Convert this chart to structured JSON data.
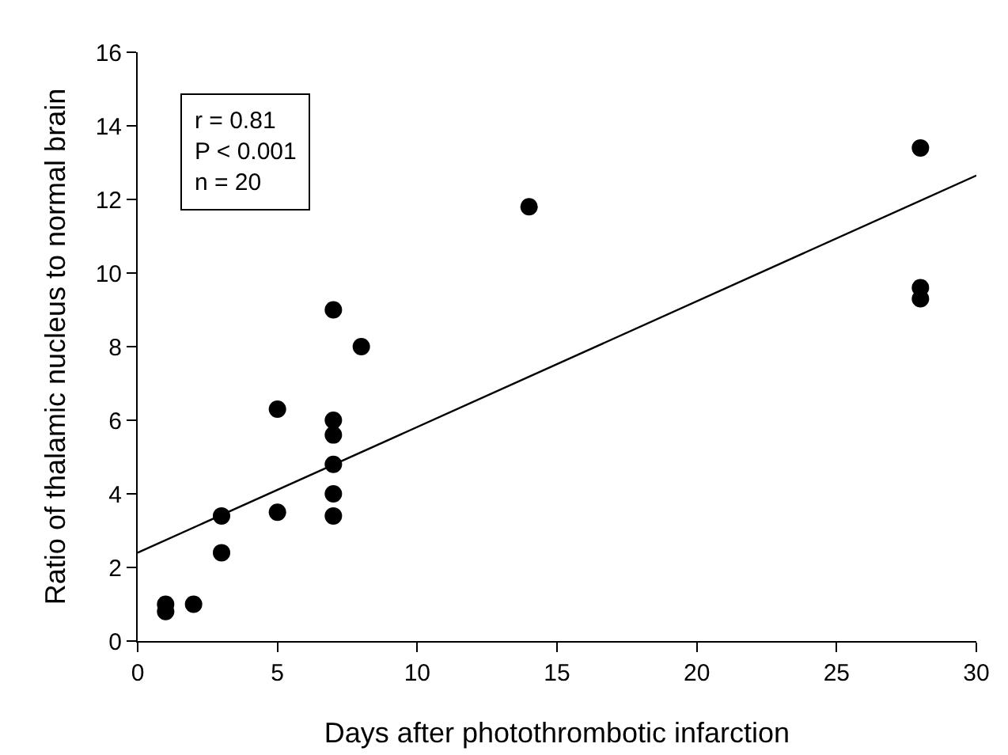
{
  "chart_data": {
    "type": "scatter",
    "xlabel": "Days after photothrombotic infarction",
    "ylabel": "Ratio of thalamic nucleus to normal brain",
    "xlim": [
      0,
      30
    ],
    "xticks": [
      0,
      5,
      10,
      15,
      20,
      25,
      30
    ],
    "ylim": [
      0,
      16
    ],
    "yticks": [
      0,
      2,
      4,
      6,
      8,
      10,
      12,
      14,
      16
    ],
    "grid": false,
    "marker": "circle",
    "annotations": [
      "r = 0.81",
      "P < 0.001",
      "n = 20"
    ],
    "series": [
      {
        "color": "#000000",
        "x": [
          1,
          1,
          2,
          3,
          3,
          5,
          5,
          7,
          7,
          7,
          7,
          7,
          7,
          8,
          14,
          28,
          28,
          28
        ],
        "values": [
          1.0,
          0.8,
          1.0,
          3.4,
          2.4,
          3.5,
          6.3,
          9.0,
          6.0,
          5.6,
          4.8,
          4.0,
          3.4,
          8.0,
          11.8,
          13.4,
          9.6,
          9.3
        ]
      },
      {
        "type": "line",
        "color": "#000000",
        "marker": "none",
        "line_style": "solid",
        "x": [
          0,
          30
        ],
        "values": [
          2.4,
          12.65
        ]
      }
    ]
  }
}
